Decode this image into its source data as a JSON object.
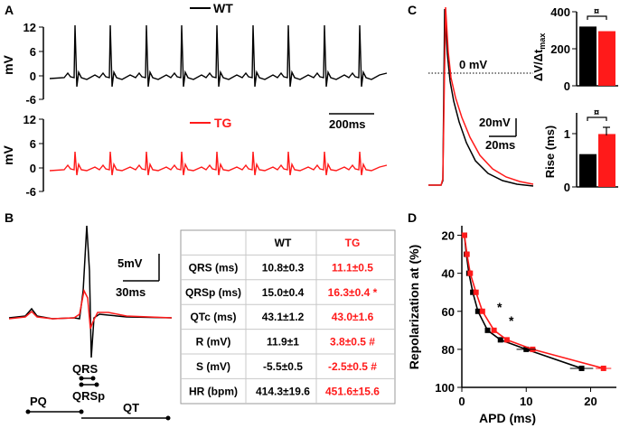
{
  "panels": {
    "A": {
      "label": "A",
      "wt_legend": "WT",
      "tg_legend": "TG",
      "y_label": "mV",
      "y_ticks": [
        "12",
        "6",
        "0",
        "-6"
      ],
      "scale_bar": "200ms"
    },
    "B": {
      "label": "B",
      "scale_v": "5mV",
      "scale_t": "30ms",
      "intervals": [
        "QRS",
        "QRSp",
        "PQ",
        "QT"
      ],
      "table": {
        "headers": [
          "",
          "WT",
          "TG"
        ],
        "rows": [
          [
            "QRS (ms)",
            "10.8±0.3",
            "11.1±0.5"
          ],
          [
            "QRSp (ms)",
            "15.0±0.4",
            "16.3±0.4 *"
          ],
          [
            "QTc (ms)",
            "43.1±1.2",
            "43.0±1.6"
          ],
          [
            "R (mV)",
            "11.9±1",
            "3.8±0.5 #"
          ],
          [
            "S (mV)",
            "-5.5±0.5",
            "-2.5±0.5 #"
          ],
          [
            "HR (bpm)",
            "414.3±19.6",
            "451.6±15.6"
          ]
        ]
      }
    },
    "C": {
      "label": "C",
      "zero_label": "0 mV",
      "scale_v": "20mV",
      "scale_t": "20ms",
      "bar1": {
        "ylabel_main": "ΔV/Δt",
        "ylabel_sub": "max",
        "ticks": [
          "400",
          "200",
          "0"
        ],
        "wt": 320,
        "tg": 295,
        "ymax": 400,
        "sig": "¤"
      },
      "bar2": {
        "ylabel": "Rise (ms)",
        "ticks": [
          "1",
          "0"
        ],
        "wt": 0.62,
        "tg": 1.0,
        "ymax": 1.4,
        "sig": "¤"
      }
    },
    "D": {
      "label": "D",
      "xlabel": "APD (ms)",
      "ylabel": "Repolarization at (%)",
      "xticks": [
        "0",
        "10",
        "20"
      ],
      "yticks": [
        "20",
        "40",
        "60",
        "80",
        "100"
      ],
      "star": "*"
    }
  },
  "chart_data": [
    {
      "type": "bar",
      "title": "",
      "ylabel": "ΔV/Δt max",
      "categories": [
        "WT",
        "TG"
      ],
      "values": [
        320,
        295
      ],
      "ylim": [
        0,
        400
      ]
    },
    {
      "type": "bar",
      "title": "",
      "ylabel": "Rise (ms)",
      "categories": [
        "WT",
        "TG"
      ],
      "values": [
        0.62,
        1.0
      ],
      "ylim": [
        0,
        1.4
      ]
    },
    {
      "type": "line",
      "xlabel": "APD (ms)",
      "ylabel": "Repolarization at (%)",
      "xlim": [
        0,
        24
      ],
      "ylim": [
        100,
        15
      ],
      "series": [
        {
          "name": "WT",
          "color": "#000000",
          "points": [
            [
              0.4,
              20
            ],
            [
              0.7,
              30
            ],
            [
              1.1,
              40
            ],
            [
              1.7,
              50
            ],
            [
              2.5,
              60
            ],
            [
              4.0,
              70
            ],
            [
              6.0,
              75
            ],
            [
              10.0,
              80
            ],
            [
              18.6,
              90
            ]
          ]
        },
        {
          "name": "TG",
          "color": "#ff1a1a",
          "points": [
            [
              0.4,
              20
            ],
            [
              0.8,
              30
            ],
            [
              1.3,
              40
            ],
            [
              2.2,
              50
            ],
            [
              3.2,
              60
            ],
            [
              5.0,
              70
            ],
            [
              7.0,
              75
            ],
            [
              11.0,
              80
            ],
            [
              22.0,
              90
            ]
          ]
        }
      ]
    }
  ]
}
